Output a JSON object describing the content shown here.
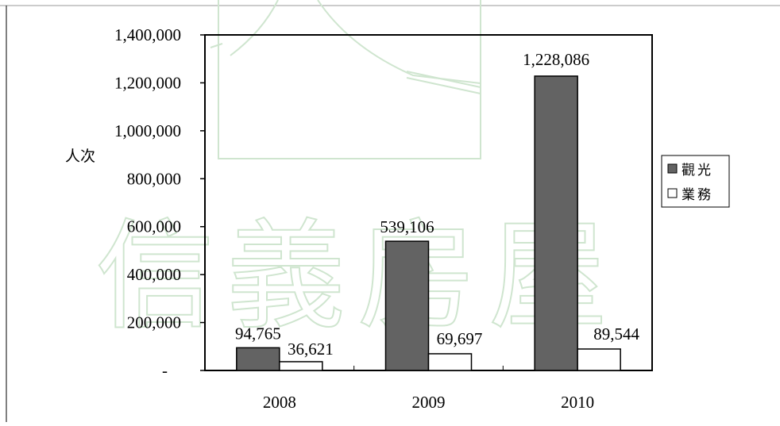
{
  "chart_data": {
    "type": "bar",
    "categories": [
      "2008",
      "2009",
      "2010"
    ],
    "series": [
      {
        "name": "觀光",
        "values": [
          94765,
          539106,
          1228086
        ],
        "color": "#636363"
      },
      {
        "name": "業務",
        "values": [
          36621,
          69697,
          89544
        ],
        "color": "#ffffff"
      }
    ],
    "data_labels": [
      [
        "94,765",
        "539,106",
        "1,228,086"
      ],
      [
        "36,621",
        "69,697",
        "89,544"
      ]
    ],
    "ylabel": "人次",
    "yticks": [
      "-",
      "200,000",
      "400,000",
      "600,000",
      "800,000",
      "1,000,000",
      "1,200,000",
      "1,400,000"
    ],
    "ylim": [
      0,
      1400000
    ],
    "grid": false,
    "legend_position": "right",
    "watermark_text": "信義房屋"
  }
}
